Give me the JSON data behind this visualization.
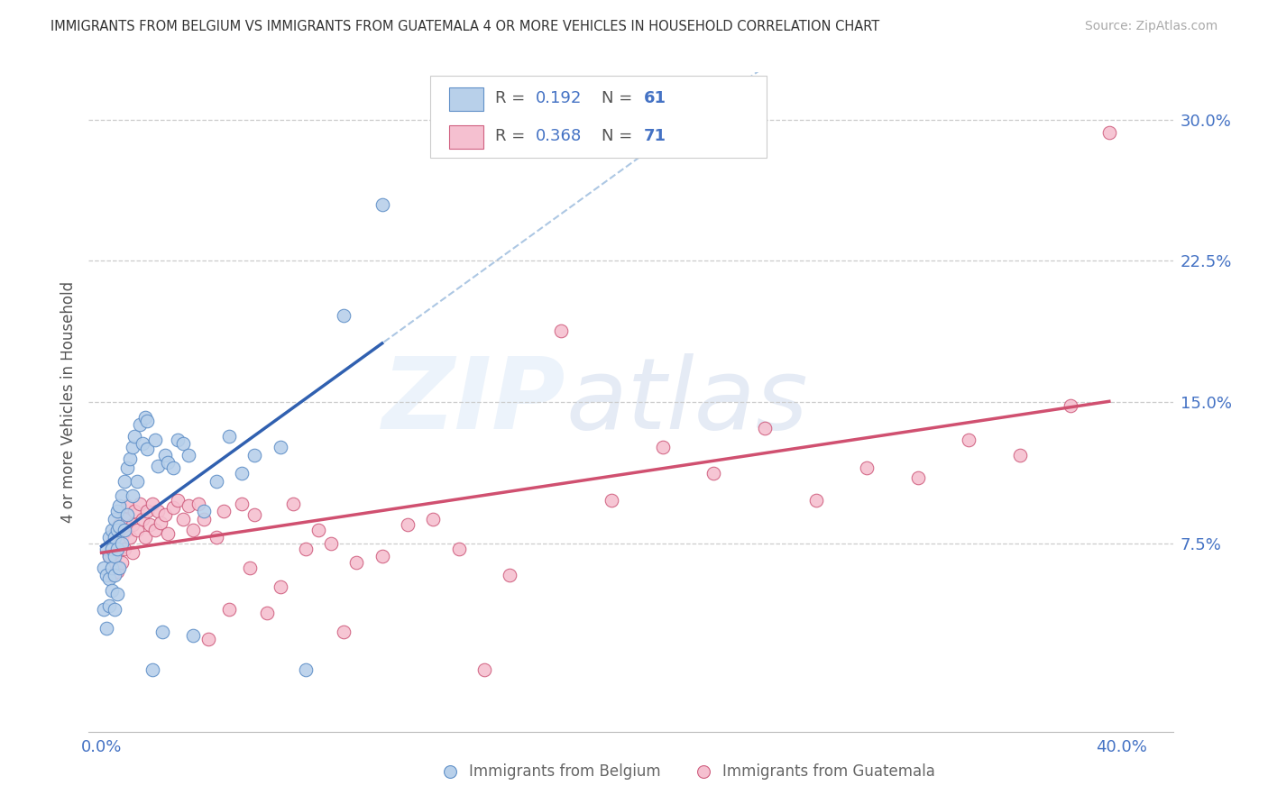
{
  "title": "IMMIGRANTS FROM BELGIUM VS IMMIGRANTS FROM GUATEMALA 4 OR MORE VEHICLES IN HOUSEHOLD CORRELATION CHART",
  "source": "Source: ZipAtlas.com",
  "ylabel": "4 or more Vehicles in Household",
  "color_belgium_fill": "#b8d0ea",
  "color_belgium_edge": "#6090c8",
  "color_guatemala_fill": "#f5c0d0",
  "color_guatemala_edge": "#d06080",
  "color_belgium_line": "#3060b0",
  "color_guatemala_line": "#d05070",
  "color_axis": "#4472c4",
  "color_dashed": "#8ab0d8",
  "r_belgium": "0.192",
  "n_belgium": "61",
  "r_guatemala": "0.368",
  "n_guatemala": "71",
  "xlim": [
    -0.005,
    0.42
  ],
  "ylim": [
    -0.025,
    0.325
  ],
  "ytick_vals": [
    0.0,
    0.075,
    0.15,
    0.225,
    0.3
  ],
  "ytick_labels": [
    "",
    "7.5%",
    "15.0%",
    "22.5%",
    "30.0%"
  ],
  "xtick_vals": [
    0.0,
    0.1,
    0.2,
    0.3,
    0.4
  ],
  "xtick_labels": [
    "0.0%",
    "",
    "",
    "",
    "40.0%"
  ],
  "grid_vals": [
    0.075,
    0.15,
    0.225,
    0.3
  ],
  "legend_label_belgium": "Immigrants from Belgium",
  "legend_label_guatemala": "Immigrants from Guatemala",
  "bel_x": [
    0.001,
    0.001,
    0.002,
    0.002,
    0.002,
    0.003,
    0.003,
    0.003,
    0.003,
    0.004,
    0.004,
    0.004,
    0.004,
    0.005,
    0.005,
    0.005,
    0.005,
    0.005,
    0.006,
    0.006,
    0.006,
    0.006,
    0.007,
    0.007,
    0.007,
    0.008,
    0.008,
    0.009,
    0.009,
    0.01,
    0.01,
    0.011,
    0.012,
    0.012,
    0.013,
    0.014,
    0.015,
    0.016,
    0.017,
    0.018,
    0.018,
    0.02,
    0.021,
    0.022,
    0.024,
    0.025,
    0.026,
    0.028,
    0.03,
    0.032,
    0.034,
    0.036,
    0.04,
    0.045,
    0.05,
    0.055,
    0.06,
    0.07,
    0.08,
    0.095,
    0.11
  ],
  "bel_y": [
    0.062,
    0.04,
    0.072,
    0.058,
    0.03,
    0.078,
    0.068,
    0.056,
    0.042,
    0.082,
    0.072,
    0.062,
    0.05,
    0.088,
    0.078,
    0.068,
    0.058,
    0.04,
    0.092,
    0.082,
    0.072,
    0.048,
    0.095,
    0.084,
    0.062,
    0.1,
    0.075,
    0.108,
    0.082,
    0.115,
    0.09,
    0.12,
    0.126,
    0.1,
    0.132,
    0.108,
    0.138,
    0.128,
    0.142,
    0.14,
    0.125,
    0.008,
    0.13,
    0.116,
    0.028,
    0.122,
    0.118,
    0.115,
    0.13,
    0.128,
    0.122,
    0.026,
    0.092,
    0.108,
    0.132,
    0.112,
    0.122,
    0.126,
    0.008,
    0.196,
    0.255
  ],
  "gua_x": [
    0.003,
    0.004,
    0.004,
    0.005,
    0.005,
    0.006,
    0.006,
    0.007,
    0.007,
    0.008,
    0.008,
    0.009,
    0.009,
    0.01,
    0.01,
    0.011,
    0.012,
    0.012,
    0.013,
    0.014,
    0.015,
    0.016,
    0.017,
    0.018,
    0.019,
    0.02,
    0.021,
    0.022,
    0.023,
    0.025,
    0.026,
    0.028,
    0.03,
    0.032,
    0.034,
    0.036,
    0.038,
    0.04,
    0.042,
    0.045,
    0.048,
    0.05,
    0.055,
    0.058,
    0.06,
    0.065,
    0.07,
    0.075,
    0.08,
    0.085,
    0.09,
    0.095,
    0.1,
    0.11,
    0.12,
    0.13,
    0.14,
    0.15,
    0.16,
    0.18,
    0.2,
    0.22,
    0.24,
    0.26,
    0.28,
    0.3,
    0.32,
    0.34,
    0.36,
    0.38,
    0.395
  ],
  "gua_y": [
    0.068,
    0.058,
    0.075,
    0.065,
    0.08,
    0.07,
    0.06,
    0.075,
    0.085,
    0.065,
    0.078,
    0.088,
    0.072,
    0.082,
    0.095,
    0.078,
    0.07,
    0.085,
    0.092,
    0.082,
    0.096,
    0.088,
    0.078,
    0.092,
    0.085,
    0.096,
    0.082,
    0.092,
    0.086,
    0.09,
    0.08,
    0.094,
    0.098,
    0.088,
    0.095,
    0.082,
    0.096,
    0.088,
    0.024,
    0.078,
    0.092,
    0.04,
    0.096,
    0.062,
    0.09,
    0.038,
    0.052,
    0.096,
    0.072,
    0.082,
    0.075,
    0.028,
    0.065,
    0.068,
    0.085,
    0.088,
    0.072,
    0.008,
    0.058,
    0.188,
    0.098,
    0.126,
    0.112,
    0.136,
    0.098,
    0.115,
    0.11,
    0.13,
    0.122,
    0.148,
    0.293
  ]
}
